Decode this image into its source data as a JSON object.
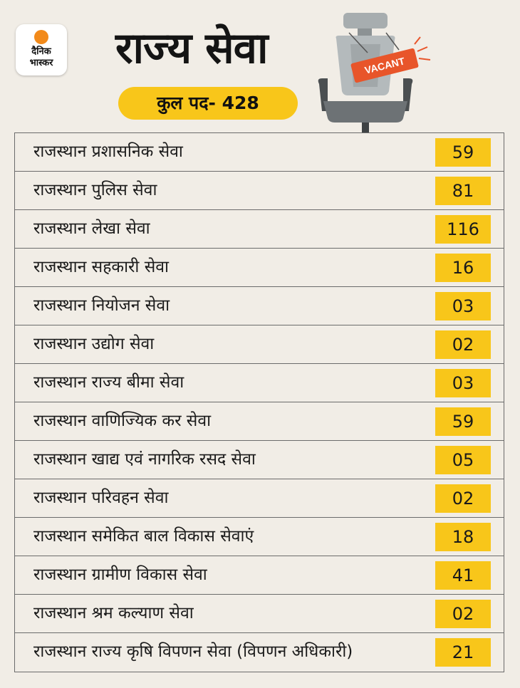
{
  "logo": {
    "line1": "दैनिक",
    "line2": "भास्कर"
  },
  "header": {
    "title": "राज्य सेवा",
    "total": "कुल पद- 428"
  },
  "illustration": {
    "tag": "VACANT"
  },
  "rows": [
    {
      "label": "राजस्थान प्रशासनिक सेवा",
      "value": "59"
    },
    {
      "label": "राजस्थान पुलिस सेवा",
      "value": "81"
    },
    {
      "label": "राजस्थान लेखा सेवा",
      "value": "116"
    },
    {
      "label": "राजस्थान सहकारी सेवा",
      "value": "16"
    },
    {
      "label": "राजस्थान नियोजन सेवा",
      "value": "03"
    },
    {
      "label": "राजस्थान उद्योग सेवा",
      "value": "02"
    },
    {
      "label": "राजस्थान राज्य बीमा सेवा",
      "value": "03"
    },
    {
      "label": "राजस्थान वाणिज्यिक कर सेवा",
      "value": "59"
    },
    {
      "label": "राजस्थान खाद्य एवं नागरिक रसद सेवा",
      "value": "05"
    },
    {
      "label": "राजस्थान परिवहन सेवा",
      "value": "02"
    },
    {
      "label": "राजस्थान समेकित बाल विकास सेवाएं",
      "value": "18"
    },
    {
      "label": "राजस्थान ग्रामीण विकास सेवा",
      "value": "41"
    },
    {
      "label": "राजस्थान श्रम कल्याण सेवा",
      "value": "02"
    },
    {
      "label": "राजस्थान राज्य कृषि विपणन सेवा (विपणन अधिकारी)",
      "value": "21"
    }
  ],
  "colors": {
    "accent": "#f8c61a",
    "background": "#f1ede6",
    "logo_sun": "#f28a1a",
    "tag": "#e8552a"
  }
}
